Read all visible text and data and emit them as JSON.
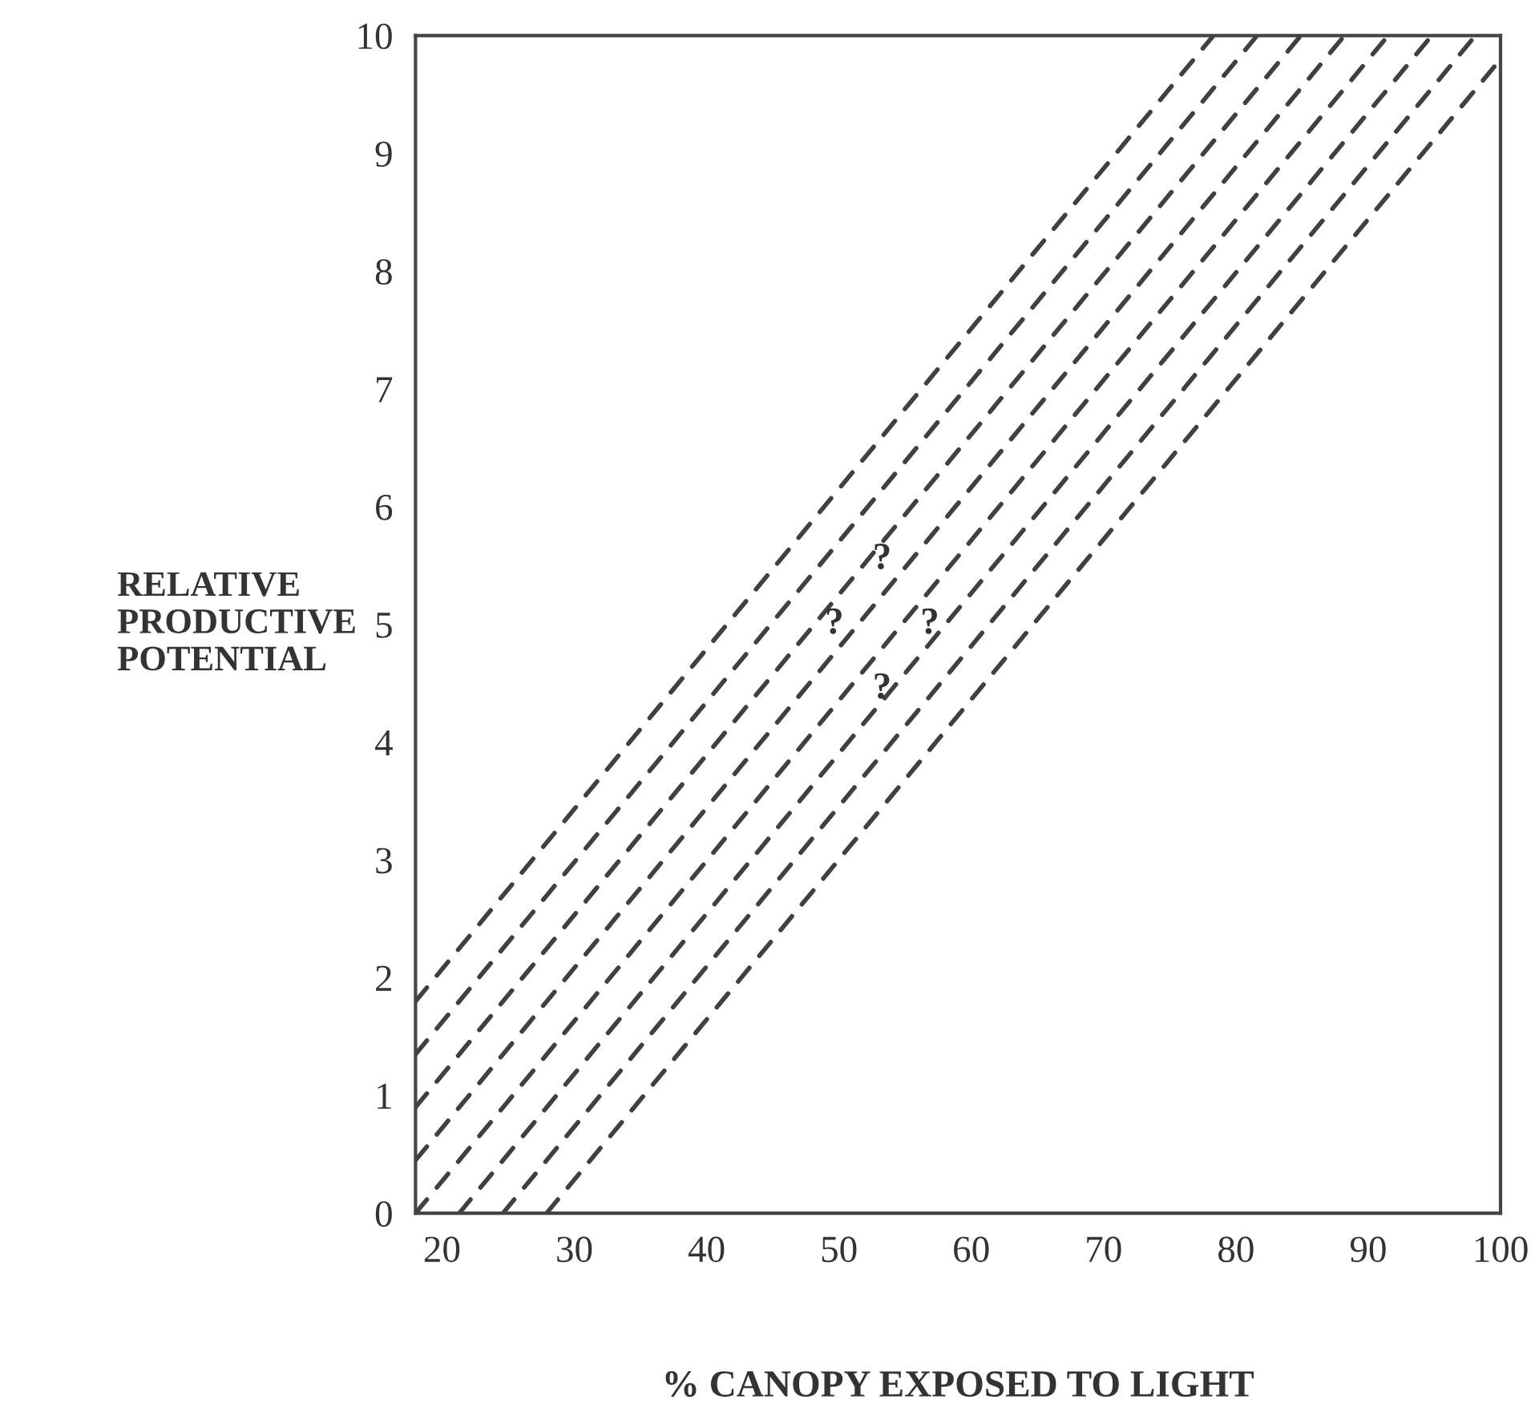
{
  "chart_data": {
    "type": "line",
    "xlabel": "% CANOPY EXPOSED TO LIGHT",
    "ylabel": "RELATIVE\nPRODUCTIVE\nPOTENTIAL",
    "xlim": [
      18,
      100
    ],
    "xticks": [
      20,
      30,
      40,
      50,
      60,
      70,
      80,
      90,
      100
    ],
    "ylim": [
      0,
      10
    ],
    "yticks": [
      0,
      1,
      2,
      3,
      4,
      5,
      6,
      7,
      8,
      9,
      10
    ],
    "grid": false,
    "legend": false,
    "line_style": "dashed",
    "marker": "none",
    "series": [
      {
        "color": "#404040",
        "x": [
          18,
          78.3
        ],
        "values": [
          1.8,
          10
        ]
      },
      {
        "color": "#404040",
        "x": [
          18,
          81.6
        ],
        "values": [
          1.35,
          10
        ]
      },
      {
        "color": "#404040",
        "x": [
          18,
          84.9
        ],
        "values": [
          0.9,
          10
        ]
      },
      {
        "color": "#404040",
        "x": [
          18,
          88.2
        ],
        "values": [
          0.45,
          10
        ]
      },
      {
        "color": "#404040",
        "x": [
          18,
          91.5
        ],
        "values": [
          0,
          10
        ]
      },
      {
        "color": "#404040",
        "x": [
          21.3,
          94.8
        ],
        "values": [
          0,
          10
        ]
      },
      {
        "color": "#404040",
        "x": [
          24.6,
          98.1
        ],
        "values": [
          0,
          10
        ]
      },
      {
        "color": "#404040",
        "x": [
          27.9,
          100
        ],
        "values": [
          0,
          9.8
        ]
      }
    ],
    "annotations": [
      "?",
      "?",
      "?",
      "?"
    ]
  }
}
